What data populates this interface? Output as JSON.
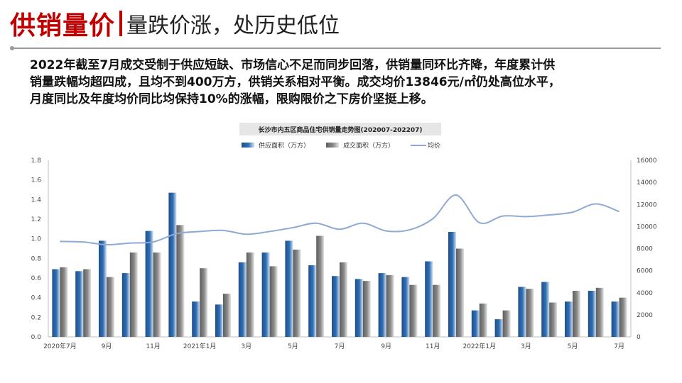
{
  "header": {
    "title_strong": "供销量价",
    "title_sub": "量跌价涨，处历史低位"
  },
  "summary": {
    "lines": [
      "2022年截至7月成交受制于供应短缺、市场信心不足而同步回落，供销量同环比齐降，年度累计供",
      "销量跌幅均超四成，且均不到400万方，供销关系相对平衡。成交均价13846元/㎡仍处高位水平，",
      "月度同比及年度均价同比均保持10%的涨幅，限购限价之下房价坚挺上移。"
    ]
  },
  "colors": {
    "title_red": "#c00000",
    "supply_bar": "#2f6fb5",
    "transaction_bar": "#8a8a8a",
    "price_line": "#8fa9d6"
  },
  "chart_data": {
    "type": "bar",
    "title": "长沙市内五区商品住宅供销量走势图(202007-202207)",
    "categories": [
      "2020-07",
      "2020-08",
      "2020-09",
      "2020-10",
      "2020-11",
      "2020-12",
      "2021-01",
      "2021-02",
      "2021-03",
      "2021-04",
      "2021-05",
      "2021-06",
      "2021-07",
      "2021-08",
      "2021-09",
      "2021-10",
      "2021-11",
      "2021-12",
      "2022-01",
      "2022-02",
      "2022-03",
      "2022-04",
      "2022-05",
      "2022-06",
      "2022-07"
    ],
    "x_tick_labels": [
      "2020年7月",
      "",
      "9月",
      "",
      "11月",
      "",
      "2021年1月",
      "",
      "3月",
      "",
      "5月",
      "",
      "7月",
      "",
      "9月",
      "",
      "11月",
      "",
      "2022年1月",
      "",
      "3月",
      "",
      "5月",
      "",
      "7月"
    ],
    "series": [
      {
        "name": "供应面积（万方）",
        "type": "bar",
        "axis": "left",
        "values": [
          0.69,
          0.67,
          0.98,
          0.65,
          1.08,
          1.47,
          0.36,
          0.33,
          0.76,
          0.86,
          0.98,
          0.73,
          0.62,
          0.59,
          0.65,
          0.61,
          0.77,
          1.07,
          0.27,
          0.18,
          0.51,
          0.56,
          0.36,
          0.47,
          0.36
        ]
      },
      {
        "name": "成交面积（万方）",
        "type": "bar",
        "axis": "left",
        "values": [
          0.71,
          0.69,
          0.61,
          0.86,
          0.86,
          1.14,
          0.7,
          0.44,
          0.86,
          0.72,
          0.89,
          1.03,
          0.76,
          0.57,
          0.63,
          0.53,
          0.53,
          0.9,
          0.34,
          0.27,
          0.49,
          0.35,
          0.47,
          0.5,
          0.4
        ]
      },
      {
        "name": "均价",
        "type": "line",
        "axis": "right",
        "values": [
          8650,
          8600,
          8350,
          8500,
          8600,
          9350,
          9550,
          9650,
          9300,
          9550,
          9900,
          10300,
          9750,
          10300,
          9600,
          9700,
          10700,
          12850,
          10350,
          10950,
          10900,
          11050,
          11300,
          12050,
          11350
        ]
      }
    ],
    "y_left": {
      "min": 0,
      "max": 1.8,
      "ticks": [
        "0.0",
        "0.2",
        "0.4",
        "0.6",
        "0.8",
        "1.0",
        "1.2",
        "1.4",
        "1.6",
        "1.8"
      ]
    },
    "y_right": {
      "min": 0,
      "max": 16000,
      "ticks": [
        "0",
        "2000",
        "4000",
        "6000",
        "8000",
        "10000",
        "12000",
        "14000",
        "16000"
      ]
    },
    "grid": false,
    "legend_position": "top"
  }
}
